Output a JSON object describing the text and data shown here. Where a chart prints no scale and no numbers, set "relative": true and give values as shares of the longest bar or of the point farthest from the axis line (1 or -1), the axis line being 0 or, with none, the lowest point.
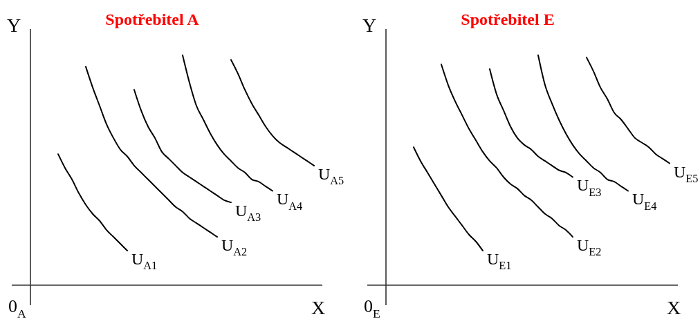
{
  "chart_data": [
    {
      "type": "line",
      "title": "Spotřebitel A",
      "xlabel": "X",
      "ylabel": "Y",
      "relative": true,
      "annotations": [
        "0$_{A}$"
      ],
      "categories": [
        null,
        null,
        null,
        null,
        null,
        null,
        null,
        null,
        null,
        null,
        null,
        null,
        null,
        null,
        null,
        null,
        null,
        null,
        null,
        null,
        null,
        null,
        null,
        null,
        null,
        null,
        null,
        null,
        null,
        null,
        null,
        null,
        null,
        null,
        null,
        null,
        null,
        null,
        null,
        null,
        null,
        null,
        null
      ],
      "series": [
        {
          "name": "U$_{A1}$",
          "color": "#000000",
          "values": [
            null,
            null,
            null,
            null,
            0.57,
            0.51,
            0.46,
            0.4,
            0.35,
            0.31,
            0.28,
            0.24,
            0.21,
            0.18,
            0.15,
            null,
            null,
            null,
            null,
            null,
            null,
            null,
            null,
            null,
            null,
            null,
            null,
            null,
            null,
            null,
            null,
            null,
            null,
            null,
            null,
            null,
            null,
            null,
            null,
            null,
            null,
            null,
            null
          ]
        },
        {
          "name": "U$_{A2}$",
          "color": "#000000",
          "values": [
            null,
            null,
            null,
            null,
            null,
            null,
            null,
            null,
            0.95,
            0.86,
            0.78,
            0.7,
            0.64,
            0.59,
            0.56,
            0.52,
            0.49,
            0.46,
            0.43,
            0.4,
            0.37,
            0.34,
            0.32,
            0.29,
            0.27,
            0.25,
            0.23,
            0.21,
            null,
            null,
            null,
            null,
            null,
            null,
            null,
            null,
            null,
            null,
            null,
            null,
            null,
            null,
            null
          ]
        },
        {
          "name": "U$_{A3}$",
          "color": "#000000",
          "values": [
            null,
            null,
            null,
            null,
            null,
            null,
            null,
            null,
            null,
            null,
            null,
            null,
            null,
            null,
            null,
            0.85,
            0.76,
            0.69,
            0.64,
            0.58,
            0.55,
            0.52,
            0.49,
            0.47,
            0.45,
            0.43,
            0.41,
            0.39,
            0.37,
            0.36,
            null,
            null,
            null,
            null,
            null,
            null,
            null,
            null,
            null,
            null,
            null,
            null,
            null
          ]
        },
        {
          "name": "U$_{A4}$",
          "color": "#000000",
          "values": [
            null,
            null,
            null,
            null,
            null,
            null,
            null,
            null,
            null,
            null,
            null,
            null,
            null,
            null,
            null,
            null,
            null,
            null,
            null,
            null,
            null,
            null,
            1,
            0.88,
            0.78,
            0.72,
            0.66,
            0.61,
            0.57,
            0.54,
            0.51,
            0.49,
            0.46,
            0.45,
            0.43,
            0.41,
            null,
            null,
            null,
            null,
            null,
            null,
            null
          ]
        },
        {
          "name": "U$_{A5}$",
          "color": "#000000",
          "values": [
            null,
            null,
            null,
            null,
            null,
            null,
            null,
            null,
            null,
            null,
            null,
            null,
            null,
            null,
            null,
            null,
            null,
            null,
            null,
            null,
            null,
            null,
            null,
            null,
            null,
            null,
            null,
            null,
            null,
            0.98,
            0.92,
            0.85,
            0.79,
            0.74,
            0.69,
            0.65,
            0.62,
            0.6,
            0.58,
            0.56,
            0.54,
            0.52,
            null
          ]
        }
      ]
    },
    {
      "type": "line",
      "title": "Spotřebitel E",
      "xlabel": "X",
      "ylabel": "Y",
      "relative": true,
      "annotations": [
        "0$_{E}$"
      ],
      "categories": [
        null,
        null,
        null,
        null,
        null,
        null,
        null,
        null,
        null,
        null,
        null,
        null,
        null,
        null,
        null,
        null,
        null,
        null,
        null,
        null,
        null,
        null,
        null,
        null,
        null,
        null,
        null,
        null,
        null,
        null,
        null,
        null,
        null,
        null,
        null,
        null,
        null,
        null,
        null,
        null,
        null,
        null,
        null
      ],
      "series": [
        {
          "name": "U$_{E1}$",
          "color": "#000000",
          "values": [
            null,
            null,
            null,
            null,
            0.6,
            0.54,
            0.49,
            0.44,
            0.39,
            0.34,
            0.3,
            0.26,
            0.22,
            0.19,
            0.15,
            null,
            null,
            null,
            null,
            null,
            null,
            null,
            null,
            null,
            null,
            null,
            null,
            null,
            null,
            null,
            null,
            null,
            null,
            null,
            null,
            null,
            null,
            null,
            null,
            null,
            null,
            null,
            null
          ]
        },
        {
          "name": "U$_{E2}$",
          "color": "#000000",
          "values": [
            null,
            null,
            null,
            null,
            null,
            null,
            null,
            null,
            0.96,
            0.87,
            0.8,
            0.74,
            0.68,
            0.63,
            0.58,
            0.54,
            0.51,
            0.47,
            0.44,
            0.42,
            0.39,
            0.37,
            0.34,
            0.31,
            0.29,
            0.26,
            0.24,
            0.21,
            null,
            null,
            null,
            null,
            null,
            null,
            null,
            null,
            null,
            null,
            null,
            null,
            null,
            null,
            null
          ]
        },
        {
          "name": "U$_{E3}$",
          "color": "#000000",
          "values": [
            null,
            null,
            null,
            null,
            null,
            null,
            null,
            null,
            null,
            null,
            null,
            null,
            null,
            null,
            null,
            0.94,
            0.83,
            0.76,
            0.69,
            0.64,
            0.61,
            0.59,
            0.56,
            0.54,
            0.52,
            0.5,
            0.49,
            0.47,
            null,
            null,
            null,
            null,
            null,
            null,
            null,
            null,
            null,
            null,
            null,
            null,
            null,
            null,
            null
          ]
        },
        {
          "name": "U$_{E4}$",
          "color": "#000000",
          "values": [
            null,
            null,
            null,
            null,
            null,
            null,
            null,
            null,
            null,
            null,
            null,
            null,
            null,
            null,
            null,
            null,
            null,
            null,
            null,
            null,
            null,
            null,
            1,
            0.87,
            0.79,
            0.72,
            0.66,
            0.61,
            0.57,
            0.54,
            0.51,
            0.49,
            0.46,
            0.45,
            0.43,
            0.41,
            null,
            null,
            null,
            null,
            null,
            null,
            null
          ]
        },
        {
          "name": "U$_{E5}$",
          "color": "#000000",
          "values": [
            null,
            null,
            null,
            null,
            null,
            null,
            null,
            null,
            null,
            null,
            null,
            null,
            null,
            null,
            null,
            null,
            null,
            null,
            null,
            null,
            null,
            null,
            null,
            null,
            null,
            null,
            null,
            null,
            null,
            0.99,
            0.93,
            0.86,
            0.81,
            0.75,
            0.72,
            0.68,
            0.64,
            0.62,
            0.6,
            0.57,
            0.55,
            0.53,
            null
          ]
        }
      ]
    }
  ]
}
